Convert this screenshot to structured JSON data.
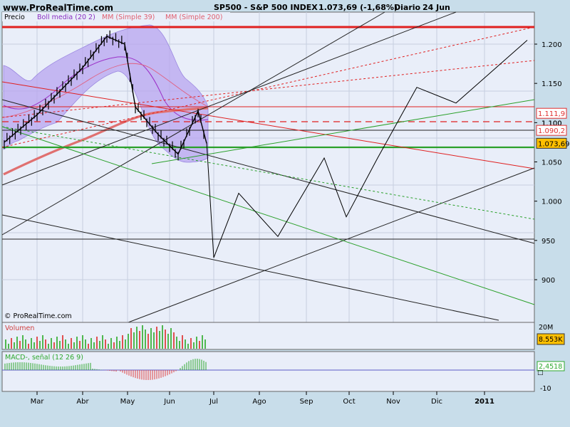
{
  "header": {
    "site": "www.ProRealTime.com",
    "title": "SP500 - S&P 500 INDEX",
    "quote": "1.073,69 (-1,68%)",
    "period": "Diario",
    "date": "24 Jun"
  },
  "legend": {
    "price": "Precio",
    "boll": "Boll media (20 2)",
    "mm39": "MM (Simple 39)",
    "mm200": "MM (Simple 200)"
  },
  "watermark": "© ProRealTime.com",
  "price_axis": {
    "ticks": [
      "1.200",
      "1.150",
      "1.100",
      "1.050",
      "1.000",
      "950",
      "900"
    ],
    "tick_values": [
      1200,
      1150,
      1100,
      1050,
      1000,
      950,
      900
    ],
    "tags": [
      {
        "label": "1.111,9",
        "value": 1111.9,
        "color": "#e03030"
      },
      {
        "label": "1.090,2",
        "value": 1090.2,
        "color": "#e03030"
      },
      {
        "label": "1.073,69",
        "value": 1073.69,
        "color": "#333333",
        "fill": "#ffc000"
      }
    ],
    "stub_label": "1.100"
  },
  "volume_panel": {
    "title": "Volumen",
    "top_tick": "20M",
    "value_tag": "8.553K"
  },
  "macd_panel": {
    "title": "MACD-, señal (12 26 9)",
    "value_tag": "2,4518",
    "low_tick": "-10"
  },
  "time_axis": {
    "labels": [
      "Mar",
      "Abr",
      "May",
      "Jun",
      "Jul",
      "Ago",
      "Sep",
      "Oct",
      "Nov",
      "Dic",
      "2011"
    ]
  },
  "colors": {
    "background": "#c8ddea",
    "plot": "#e9eef9",
    "band": "#b7a4ef",
    "price": "#000000",
    "mm200": "#e07070",
    "resistance": "#e02020",
    "support": "#3a9a3a",
    "macd": "#5b5bc8"
  },
  "chart_data": {
    "type": "line",
    "title": "SP500 - S&P 500 INDEX",
    "ylim": [
      860,
      1230
    ],
    "series": [
      {
        "name": "Precio",
        "x": [
          "Feb",
          "Mar",
          "Abr",
          "Abr",
          "May",
          "May",
          "Jun",
          "Jun",
          "Jun",
          "Jun"
        ],
        "values": [
          1075,
          1110,
          1170,
          1210,
          1200,
          1120,
          1085,
          1060,
          1115,
          1073.69
        ]
      },
      {
        "name": "MM (Simple 200)",
        "x": [
          "Feb",
          "Mar",
          "Abr",
          "May",
          "Jun",
          "Jun"
        ],
        "values": [
          1030,
          1055,
          1075,
          1095,
          1108,
          1110
        ]
      }
    ],
    "projection": {
      "x": [
        "Jun",
        "Jul",
        "Jul",
        "Ago",
        "Sep",
        "Sep",
        "Oct",
        "Nov",
        "Nov",
        "Dic",
        "2011"
      ],
      "values": [
        1075,
        928,
        1010,
        955,
        1055,
        980,
        1055,
        1145,
        1145,
        1125,
        1205
      ]
    },
    "horizontal_levels": [
      1222,
      1111.9,
      1090.2,
      1073.69,
      1057,
      950
    ],
    "volume": {
      "values_k": [
        8553
      ]
    },
    "macd": {
      "last": 2.4518
    }
  }
}
